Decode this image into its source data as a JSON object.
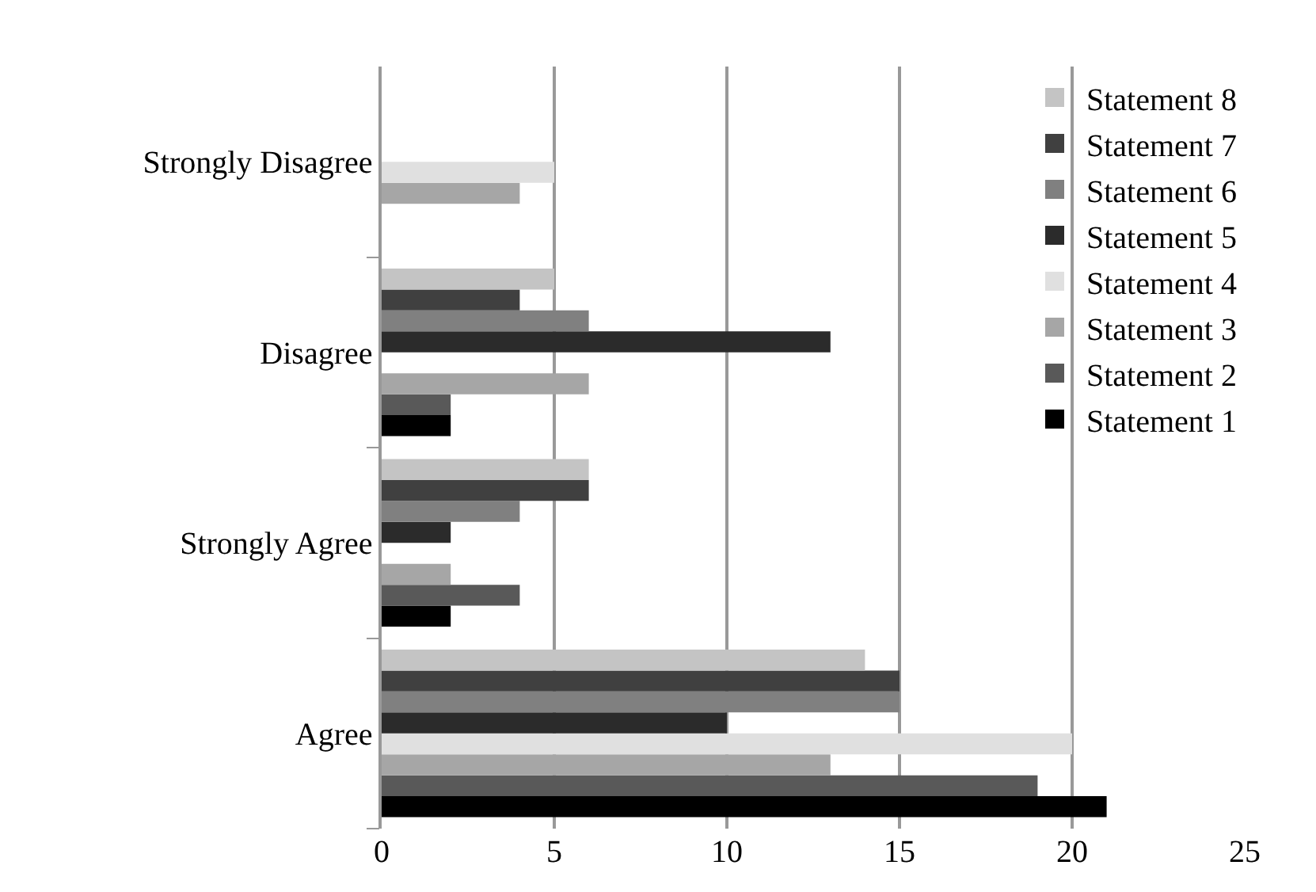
{
  "chart_data": {
    "type": "bar",
    "orientation": "horizontal",
    "categories": [
      "Strongly Disagree",
      "Disagree",
      "Strongly Agree",
      "Agree"
    ],
    "series": [
      {
        "name": "Statement 1",
        "color": "#000000",
        "values": [
          0,
          2,
          2,
          21
        ]
      },
      {
        "name": "Statement 2",
        "color": "#595959",
        "values": [
          0,
          2,
          4,
          19
        ]
      },
      {
        "name": "Statement 3",
        "color": "#a6a6a6",
        "values": [
          4,
          6,
          2,
          13
        ]
      },
      {
        "name": "Statement 4",
        "color": "#e0e0e0",
        "values": [
          5,
          0,
          0,
          20
        ]
      },
      {
        "name": "Statement 5",
        "color": "#2b2b2b",
        "values": [
          0,
          13,
          2,
          10
        ]
      },
      {
        "name": "Statement 6",
        "color": "#808080",
        "values": [
          0,
          6,
          4,
          15
        ]
      },
      {
        "name": "Statement 7",
        "color": "#404040",
        "values": [
          0,
          4,
          6,
          15
        ]
      },
      {
        "name": "Statement 8",
        "color": "#c4c4c4",
        "values": [
          0,
          5,
          6,
          14
        ]
      }
    ],
    "xlim": [
      0,
      25
    ],
    "xticks": [
      0,
      5,
      10,
      15,
      20,
      25
    ],
    "grid": "x",
    "legend": "top right"
  }
}
